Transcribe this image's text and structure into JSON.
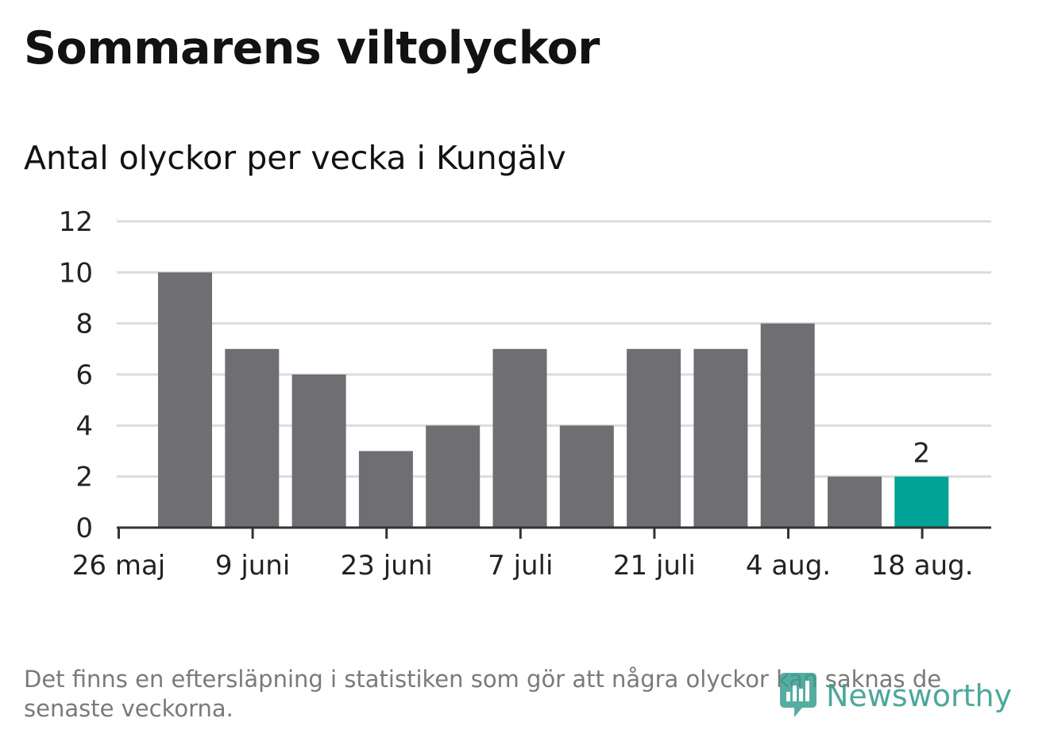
{
  "header": {
    "title": "Sommarens viltolyckor",
    "subtitle": "Antal olyckor per vecka i Kungälv"
  },
  "footer": {
    "note": "Det finns en eftersläpning i statistiken som gör att några olyckor kan saknas de senaste veckorna.",
    "brand": "Newsworthy",
    "brand_icon": "newsworthy-chart-bubble-icon"
  },
  "colors": {
    "bar": "#6e6e73",
    "highlight": "#00a396",
    "grid": "#dcdcdc",
    "axis": "#333333",
    "brand": "#3a9e91"
  },
  "chart_data": {
    "type": "bar",
    "title": "Sommarens viltolyckor",
    "subtitle": "Antal olyckor per vecka i Kungälv",
    "xlabel": "",
    "ylabel": "",
    "ylim": [
      0,
      12
    ],
    "yticks": [
      "0",
      "2",
      "4",
      "6",
      "8",
      "10",
      "12"
    ],
    "xtick_labels": [
      "26 maj",
      "9 juni",
      "23 juni",
      "7 juli",
      "21 juli",
      "4 aug.",
      "18 aug."
    ],
    "values": [
      10,
      7,
      6,
      3,
      4,
      7,
      4,
      7,
      7,
      8,
      2,
      2
    ],
    "highlight_index": 11,
    "data_labels": [
      {
        "index": 11,
        "text": "2"
      }
    ],
    "grid": true,
    "legend": "none"
  }
}
